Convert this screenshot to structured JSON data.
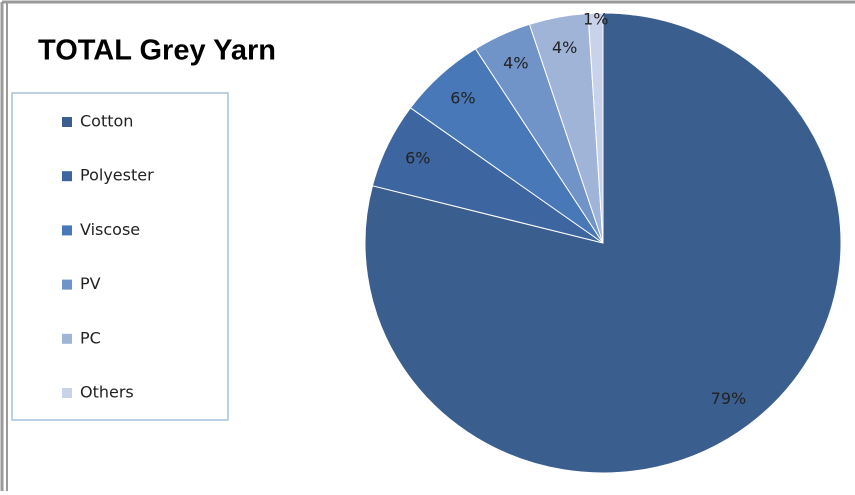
{
  "chart_data": {
    "type": "pie",
    "title": "TOTAL Grey Yarn",
    "categories": [
      "Cotton",
      "Polyester",
      "Viscose",
      "PV",
      "PC",
      "Others"
    ],
    "values": [
      79,
      6,
      6,
      4,
      4,
      1
    ],
    "value_labels": [
      "79%",
      "6%",
      "6%",
      "4%",
      "4%",
      "1%"
    ],
    "colors": [
      "#3a5e8e",
      "#3d66a0",
      "#4878b8",
      "#7093c8",
      "#a0b4d8",
      "#c8d2e8"
    ],
    "legend": "left"
  }
}
